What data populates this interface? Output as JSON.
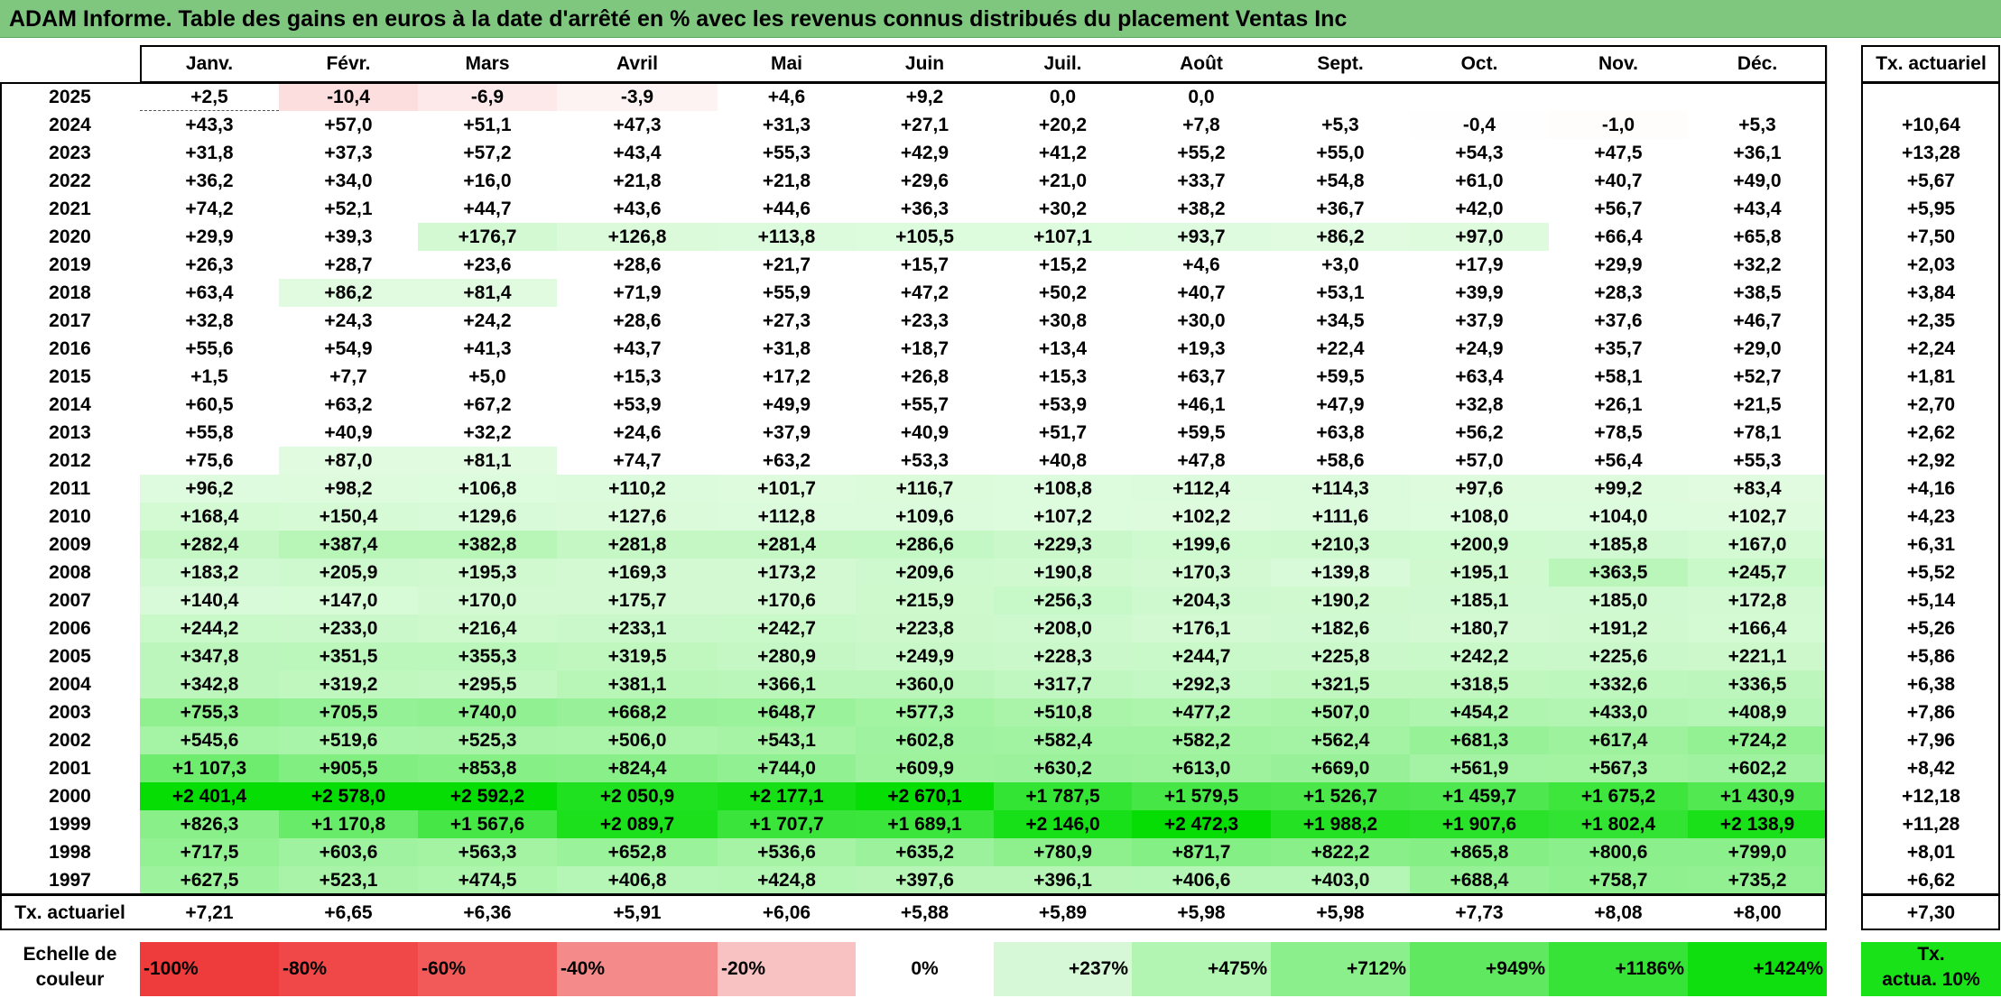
{
  "title": "ADAM Informe. Table des gains en euros à la date d'arrêté en % avec les revenus connus distribués du placement Ventas Inc",
  "months": [
    "Janv.",
    "Févr.",
    "Mars",
    "Avril",
    "Mai",
    "Juin",
    "Juil.",
    "Août",
    "Sept.",
    "Oct.",
    "Nov.",
    "Déc."
  ],
  "rate_header": "Tx. actuariel",
  "rows": [
    {
      "year": "2025",
      "values": [
        "+2,5",
        "-10,4",
        "-6,9",
        "-3,9",
        "+4,6",
        "+9,2",
        "0,0",
        "0,0",
        "",
        "",
        "",
        ""
      ],
      "rate": ""
    },
    {
      "year": "2024",
      "values": [
        "+43,3",
        "+57,0",
        "+51,1",
        "+47,3",
        "+31,3",
        "+27,1",
        "+20,2",
        "+7,8",
        "+5,3",
        "-0,4",
        "-1,0",
        "+5,3"
      ],
      "rate": "+10,64"
    },
    {
      "year": "2023",
      "values": [
        "+31,8",
        "+37,3",
        "+57,2",
        "+43,4",
        "+55,3",
        "+42,9",
        "+41,2",
        "+55,2",
        "+55,0",
        "+54,3",
        "+47,5",
        "+36,1"
      ],
      "rate": "+13,28"
    },
    {
      "year": "2022",
      "values": [
        "+36,2",
        "+34,0",
        "+16,0",
        "+21,8",
        "+21,8",
        "+29,6",
        "+21,0",
        "+33,7",
        "+54,8",
        "+61,0",
        "+40,7",
        "+49,0"
      ],
      "rate": "+5,67"
    },
    {
      "year": "2021",
      "values": [
        "+74,2",
        "+52,1",
        "+44,7",
        "+43,6",
        "+44,6",
        "+36,3",
        "+30,2",
        "+38,2",
        "+36,7",
        "+42,0",
        "+56,7",
        "+43,4"
      ],
      "rate": "+5,95"
    },
    {
      "year": "2020",
      "values": [
        "+29,9",
        "+39,3",
        "+176,7",
        "+126,8",
        "+113,8",
        "+105,5",
        "+107,1",
        "+93,7",
        "+86,2",
        "+97,0",
        "+66,4",
        "+65,8"
      ],
      "rate": "+7,50"
    },
    {
      "year": "2019",
      "values": [
        "+26,3",
        "+28,7",
        "+23,6",
        "+28,6",
        "+21,7",
        "+15,7",
        "+15,2",
        "+4,6",
        "+3,0",
        "+17,9",
        "+29,9",
        "+32,2"
      ],
      "rate": "+2,03"
    },
    {
      "year": "2018",
      "values": [
        "+63,4",
        "+86,2",
        "+81,4",
        "+71,9",
        "+55,9",
        "+47,2",
        "+50,2",
        "+40,7",
        "+53,1",
        "+39,9",
        "+28,3",
        "+38,5"
      ],
      "rate": "+3,84"
    },
    {
      "year": "2017",
      "values": [
        "+32,8",
        "+24,3",
        "+24,2",
        "+28,6",
        "+27,3",
        "+23,3",
        "+30,8",
        "+30,0",
        "+34,5",
        "+37,9",
        "+37,6",
        "+46,7"
      ],
      "rate": "+2,35"
    },
    {
      "year": "2016",
      "values": [
        "+55,6",
        "+54,9",
        "+41,3",
        "+43,7",
        "+31,8",
        "+18,7",
        "+13,4",
        "+19,3",
        "+22,4",
        "+24,9",
        "+35,7",
        "+29,0"
      ],
      "rate": "+2,24"
    },
    {
      "year": "2015",
      "values": [
        "+1,5",
        "+7,7",
        "+5,0",
        "+15,3",
        "+17,2",
        "+26,8",
        "+15,3",
        "+63,7",
        "+59,5",
        "+63,4",
        "+58,1",
        "+52,7"
      ],
      "rate": "+1,81"
    },
    {
      "year": "2014",
      "values": [
        "+60,5",
        "+63,2",
        "+67,2",
        "+53,9",
        "+49,9",
        "+55,7",
        "+53,9",
        "+46,1",
        "+47,9",
        "+32,8",
        "+26,1",
        "+21,5"
      ],
      "rate": "+2,70"
    },
    {
      "year": "2013",
      "values": [
        "+55,8",
        "+40,9",
        "+32,2",
        "+24,6",
        "+37,9",
        "+40,9",
        "+51,7",
        "+59,5",
        "+63,8",
        "+56,2",
        "+78,5",
        "+78,1"
      ],
      "rate": "+2,62"
    },
    {
      "year": "2012",
      "values": [
        "+75,6",
        "+87,0",
        "+81,1",
        "+74,7",
        "+63,2",
        "+53,3",
        "+40,8",
        "+47,8",
        "+58,6",
        "+57,0",
        "+56,4",
        "+55,3"
      ],
      "rate": "+2,92"
    },
    {
      "year": "2011",
      "values": [
        "+96,2",
        "+98,2",
        "+106,8",
        "+110,2",
        "+101,7",
        "+116,7",
        "+108,8",
        "+112,4",
        "+114,3",
        "+97,6",
        "+99,2",
        "+83,4"
      ],
      "rate": "+4,16"
    },
    {
      "year": "2010",
      "values": [
        "+168,4",
        "+150,4",
        "+129,6",
        "+127,6",
        "+112,8",
        "+109,6",
        "+107,2",
        "+102,2",
        "+111,6",
        "+108,0",
        "+104,0",
        "+102,7"
      ],
      "rate": "+4,23"
    },
    {
      "year": "2009",
      "values": [
        "+282,4",
        "+387,4",
        "+382,8",
        "+281,8",
        "+281,4",
        "+286,6",
        "+229,3",
        "+199,6",
        "+210,3",
        "+200,9",
        "+185,8",
        "+167,0"
      ],
      "rate": "+6,31"
    },
    {
      "year": "2008",
      "values": [
        "+183,2",
        "+205,9",
        "+195,3",
        "+169,3",
        "+173,2",
        "+209,6",
        "+190,8",
        "+170,3",
        "+139,8",
        "+195,1",
        "+363,5",
        "+245,7"
      ],
      "rate": "+5,52"
    },
    {
      "year": "2007",
      "values": [
        "+140,4",
        "+147,0",
        "+170,0",
        "+175,7",
        "+170,6",
        "+215,9",
        "+256,3",
        "+204,3",
        "+190,2",
        "+185,1",
        "+185,0",
        "+172,8"
      ],
      "rate": "+5,14"
    },
    {
      "year": "2006",
      "values": [
        "+244,2",
        "+233,0",
        "+216,4",
        "+233,1",
        "+242,7",
        "+223,8",
        "+208,0",
        "+176,1",
        "+182,6",
        "+180,7",
        "+191,2",
        "+166,4"
      ],
      "rate": "+5,26"
    },
    {
      "year": "2005",
      "values": [
        "+347,8",
        "+351,5",
        "+355,3",
        "+319,5",
        "+280,9",
        "+249,9",
        "+228,3",
        "+244,7",
        "+225,8",
        "+242,2",
        "+225,6",
        "+221,1"
      ],
      "rate": "+5,86"
    },
    {
      "year": "2004",
      "values": [
        "+342,8",
        "+319,2",
        "+295,5",
        "+381,1",
        "+366,1",
        "+360,0",
        "+317,7",
        "+292,3",
        "+321,5",
        "+318,5",
        "+332,6",
        "+336,5"
      ],
      "rate": "+6,38"
    },
    {
      "year": "2003",
      "values": [
        "+755,3",
        "+705,5",
        "+740,0",
        "+668,2",
        "+648,7",
        "+577,3",
        "+510,8",
        "+477,2",
        "+507,0",
        "+454,2",
        "+433,0",
        "+408,9"
      ],
      "rate": "+7,86"
    },
    {
      "year": "2002",
      "values": [
        "+545,6",
        "+519,6",
        "+525,3",
        "+506,0",
        "+543,1",
        "+602,8",
        "+582,4",
        "+582,2",
        "+562,4",
        "+681,3",
        "+617,4",
        "+724,2"
      ],
      "rate": "+7,96"
    },
    {
      "year": "2001",
      "values": [
        "+1 107,3",
        "+905,5",
        "+853,8",
        "+824,4",
        "+744,0",
        "+609,9",
        "+630,2",
        "+613,0",
        "+669,0",
        "+561,9",
        "+567,3",
        "+602,2"
      ],
      "rate": "+8,42"
    },
    {
      "year": "2000",
      "values": [
        "+2 401,4",
        "+2 578,0",
        "+2 592,2",
        "+2 050,9",
        "+2 177,1",
        "+2 670,1",
        "+1 787,5",
        "+1 579,5",
        "+1 526,7",
        "+1 459,7",
        "+1 675,2",
        "+1 430,9"
      ],
      "rate": "+12,18"
    },
    {
      "year": "1999",
      "values": [
        "+826,3",
        "+1 170,8",
        "+1 567,6",
        "+2 089,7",
        "+1 707,7",
        "+1 689,1",
        "+2 146,0",
        "+2 472,3",
        "+1 988,2",
        "+1 907,6",
        "+1 802,4",
        "+2 138,9"
      ],
      "rate": "+11,28"
    },
    {
      "year": "1998",
      "values": [
        "+717,5",
        "+603,6",
        "+563,3",
        "+652,8",
        "+536,6",
        "+635,2",
        "+780,9",
        "+871,7",
        "+822,2",
        "+865,8",
        "+800,6",
        "+799,0"
      ],
      "rate": "+8,01"
    },
    {
      "year": "1997",
      "values": [
        "+627,5",
        "+523,1",
        "+474,5",
        "+406,8",
        "+424,8",
        "+397,6",
        "+396,1",
        "+406,6",
        "+403,0",
        "+688,4",
        "+758,7",
        "+735,2"
      ],
      "rate": "+6,62"
    }
  ],
  "footer": {
    "label": "Tx. actuariel",
    "values": [
      "+7,21",
      "+6,65",
      "+6,36",
      "+5,91",
      "+6,06",
      "+5,88",
      "+5,89",
      "+5,98",
      "+5,98",
      "+7,73",
      "+8,08",
      "+8,00"
    ],
    "rate": "+7,30"
  },
  "scale": {
    "label_line1": "Echelle de",
    "label_line2": "couleur",
    "items": [
      {
        "label": "-100%",
        "color": "#ee3b3b",
        "align": "left"
      },
      {
        "label": "-80%",
        "color": "#f04848",
        "align": "left"
      },
      {
        "label": "-60%",
        "color": "#f25a5a",
        "align": "left"
      },
      {
        "label": "-40%",
        "color": "#f58a8a",
        "align": "left"
      },
      {
        "label": "-20%",
        "color": "#f9c2c2",
        "align": "left"
      },
      {
        "label": "0%",
        "color": "#ffffff",
        "align": "center"
      },
      {
        "label": "+237%",
        "color": "#d6f8d6",
        "align": "right"
      },
      {
        "label": "+475%",
        "color": "#b2f4b2",
        "align": "right"
      },
      {
        "label": "+712%",
        "color": "#8bef8b",
        "align": "right"
      },
      {
        "label": "+949%",
        "color": "#60e960",
        "align": "right"
      },
      {
        "label": "+1186%",
        "color": "#36e336",
        "align": "right"
      },
      {
        "label": "+1424%",
        "color": "#0fdf0f",
        "align": "right"
      }
    ],
    "rate_label_line1": "Tx.",
    "rate_label_line2": "actua. 10%",
    "rate_color": "#19e219"
  }
}
